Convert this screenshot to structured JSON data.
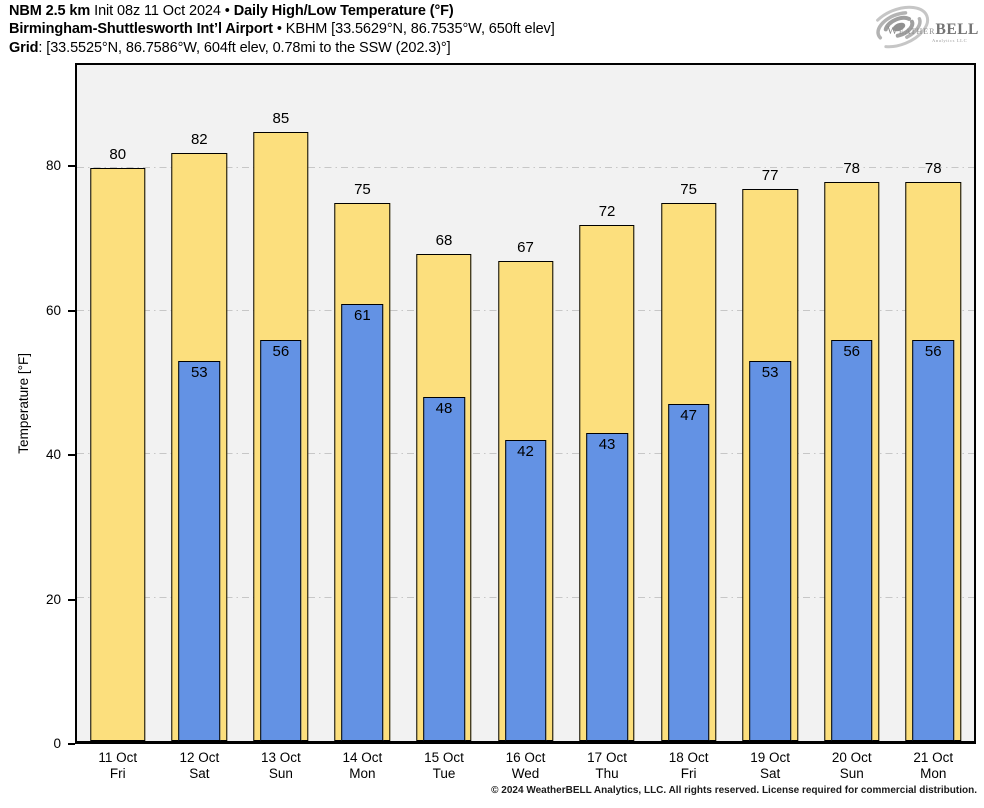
{
  "header": {
    "line1": {
      "bold1": "NBM 2.5 km",
      "regular": "Init 08z 11 Oct 2024",
      "bullet": "•",
      "bold2": "Daily High/Low Temperature (°F)"
    },
    "line2": {
      "bold": "Birmingham-Shuttlesworth Int’l Airport",
      "bullet": "•",
      "regular": "KBHM [33.5629°N, 86.7535°W, 650ft elev]"
    },
    "line3": {
      "bold": "Grid",
      "rest": ": [33.5525°N, 86.7586°W, 604ft elev, 0.78mi to the SSW (202.3)°]"
    }
  },
  "logo": {
    "word1": "Weather",
    "word2": "BELL",
    "sub": "Analytics LLC"
  },
  "chart_data": {
    "type": "bar",
    "title": "Daily High/Low Temperature (°F)",
    "subtitle": "NBM 2.5 km Init 08z 11 Oct 2024 — Birmingham-Shuttlesworth Int’l Airport (KBHM)",
    "xlabel": "",
    "ylabel": "Temperature [°F]",
    "yticks": [
      0,
      20,
      40,
      60,
      80
    ],
    "ylim": [
      0,
      94.3
    ],
    "grid": true,
    "legend_position": "none",
    "categories": [
      "11 Oct",
      "12 Oct",
      "13 Oct",
      "14 Oct",
      "15 Oct",
      "16 Oct",
      "17 Oct",
      "18 Oct",
      "19 Oct",
      "20 Oct",
      "21 Oct"
    ],
    "weekdays": [
      "Fri",
      "Sat",
      "Sun",
      "Mon",
      "Tue",
      "Wed",
      "Thu",
      "Fri",
      "Sat",
      "Sun",
      "Mon"
    ],
    "series": [
      {
        "name": "Daily High",
        "color": "#FCDF7D",
        "values": [
          80,
          82,
          85,
          75,
          68,
          67,
          72,
          75,
          77,
          78,
          78
        ]
      },
      {
        "name": "Daily Low",
        "color": "#6392E4",
        "values": [
          null,
          53,
          56,
          61,
          48,
          42,
          43,
          47,
          53,
          56,
          56
        ]
      }
    ]
  },
  "colors": {
    "high_bar": "#FCDF7D",
    "low_bar": "#6392E4",
    "plot_background": "#F2F2F2",
    "gridline": "#C7C7C7",
    "bar_outline": "#000000"
  },
  "footer": {
    "copyright": "© 2024 WeatherBELL Analytics, LLC. All rights reserved. License required for commercial distribution."
  }
}
